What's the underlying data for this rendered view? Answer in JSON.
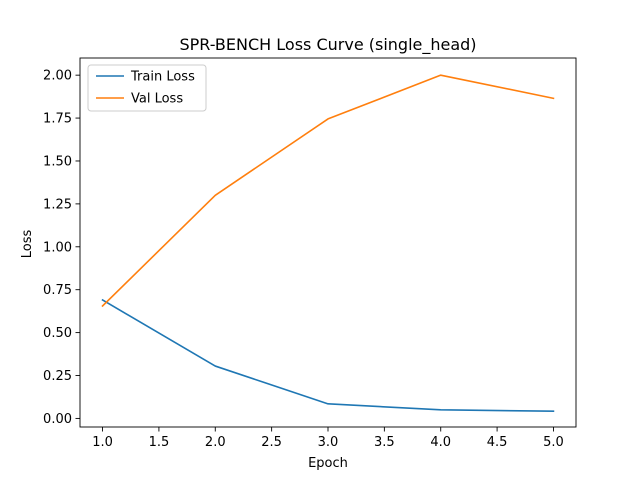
{
  "chart_data": {
    "type": "line",
    "title": "SPR-BENCH Loss Curve (single_head)",
    "xlabel": "Epoch",
    "ylabel": "Loss",
    "xlim": [
      0.8,
      5.2
    ],
    "ylim": [
      -0.05,
      2.1
    ],
    "xticks": [
      1.0,
      1.5,
      2.0,
      2.5,
      3.0,
      3.5,
      4.0,
      4.5,
      5.0
    ],
    "xtick_labels": [
      "1.0",
      "1.5",
      "2.0",
      "2.5",
      "3.0",
      "3.5",
      "4.0",
      "4.5",
      "5.0"
    ],
    "yticks": [
      0.0,
      0.25,
      0.5,
      0.75,
      1.0,
      1.25,
      1.5,
      1.75,
      2.0
    ],
    "ytick_labels": [
      "0.00",
      "0.25",
      "0.50",
      "0.75",
      "1.00",
      "1.25",
      "1.50",
      "1.75",
      "2.00"
    ],
    "x": [
      1,
      2,
      3,
      4,
      5
    ],
    "series": [
      {
        "name": "Train Loss",
        "color": "#1f77b4",
        "values": [
          0.69,
          0.305,
          0.085,
          0.05,
          0.042
        ]
      },
      {
        "name": "Val Loss",
        "color": "#ff7f0e",
        "values": [
          0.655,
          1.3,
          1.745,
          2.0,
          1.865
        ]
      }
    ],
    "grid": false,
    "legend": "upper-left"
  }
}
